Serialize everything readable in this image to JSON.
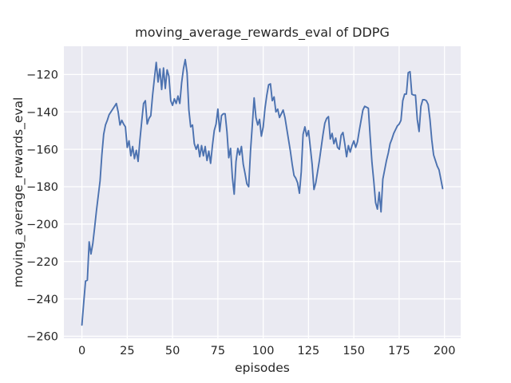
{
  "figure": {
    "background": "#ffffff",
    "axes_background": "#eaeaf2",
    "grid_color": "#ffffff",
    "text_color": "#262626"
  },
  "chart_data": {
    "type": "line",
    "title": "moving_average_rewards_eval of DDPG",
    "xlabel": "episodes",
    "ylabel": "moving_average_rewards_eval",
    "x_ticks": [
      0,
      25,
      50,
      75,
      100,
      125,
      150,
      175,
      200
    ],
    "y_ticks": [
      -120,
      -140,
      -160,
      -180,
      -200,
      -220,
      -240,
      -260
    ],
    "xlim": [
      -9.95,
      208.95
    ],
    "ylim": [
      -261.1,
      -104.9
    ],
    "grid": true,
    "legend": null,
    "line_color": "#4c72b0",
    "line_width": 1.9,
    "series": [
      {
        "name": "moving_average_rewards_eval",
        "x_start": 0,
        "x_step": 1,
        "y": [
          -254,
          -242,
          -230.5,
          -230,
          -209.5,
          -216,
          -210.5,
          -202,
          -193,
          -185,
          -177,
          -163,
          -152,
          -147,
          -144.5,
          -141.5,
          -140,
          -138.5,
          -137,
          -135.5,
          -140,
          -147,
          -144.5,
          -146.5,
          -148,
          -159,
          -155.5,
          -163.5,
          -158.5,
          -165,
          -160.5,
          -166.5,
          -155,
          -145,
          -135.5,
          -134,
          -146.5,
          -143.5,
          -142,
          -131,
          -122,
          -113.5,
          -124,
          -117,
          -128,
          -116.5,
          -127.5,
          -117.5,
          -121,
          -134,
          -136.5,
          -133,
          -135.5,
          -131.5,
          -135.5,
          -124.5,
          -117,
          -112,
          -119,
          -139,
          -148,
          -147,
          -157,
          -160,
          -157.5,
          -164,
          -158,
          -163.5,
          -158.5,
          -166,
          -161,
          -167.5,
          -158,
          -150,
          -146.5,
          -138.5,
          -150.5,
          -142,
          -141,
          -141,
          -150.5,
          -164.5,
          -159.5,
          -175,
          -184,
          -166.5,
          -159.5,
          -163,
          -158.5,
          -168,
          -173,
          -178.5,
          -180,
          -161,
          -147,
          -132.5,
          -143,
          -147,
          -144,
          -153,
          -148,
          -138,
          -131,
          -125.5,
          -125,
          -134,
          -132,
          -140,
          -138.5,
          -143,
          -141,
          -139,
          -143,
          -149,
          -155,
          -161,
          -168,
          -174,
          -175.5,
          -178,
          -183.5,
          -172,
          -152,
          -148,
          -153,
          -150,
          -159,
          -168,
          -181.5,
          -178,
          -172,
          -166,
          -159,
          -152,
          -146,
          -143.5,
          -142.5,
          -154.5,
          -151.5,
          -157,
          -154,
          -159,
          -160,
          -152.5,
          -151,
          -157,
          -164,
          -158,
          -161.5,
          -158,
          -155.5,
          -159,
          -156,
          -150,
          -144.5,
          -139,
          -137,
          -137.5,
          -138,
          -153,
          -167,
          -177,
          -188.5,
          -192,
          -183,
          -193.5,
          -176,
          -171,
          -166,
          -162,
          -157,
          -154.5,
          -151.5,
          -149.5,
          -147.5,
          -146.5,
          -144.5,
          -134,
          -130.5,
          -130.5,
          -119,
          -118.5,
          -130.5,
          -131,
          -131,
          -144,
          -150.5,
          -137,
          -133.5,
          -133.5,
          -134,
          -136,
          -144,
          -155,
          -163,
          -166,
          -169,
          -171,
          -176,
          -181
        ]
      }
    ]
  }
}
